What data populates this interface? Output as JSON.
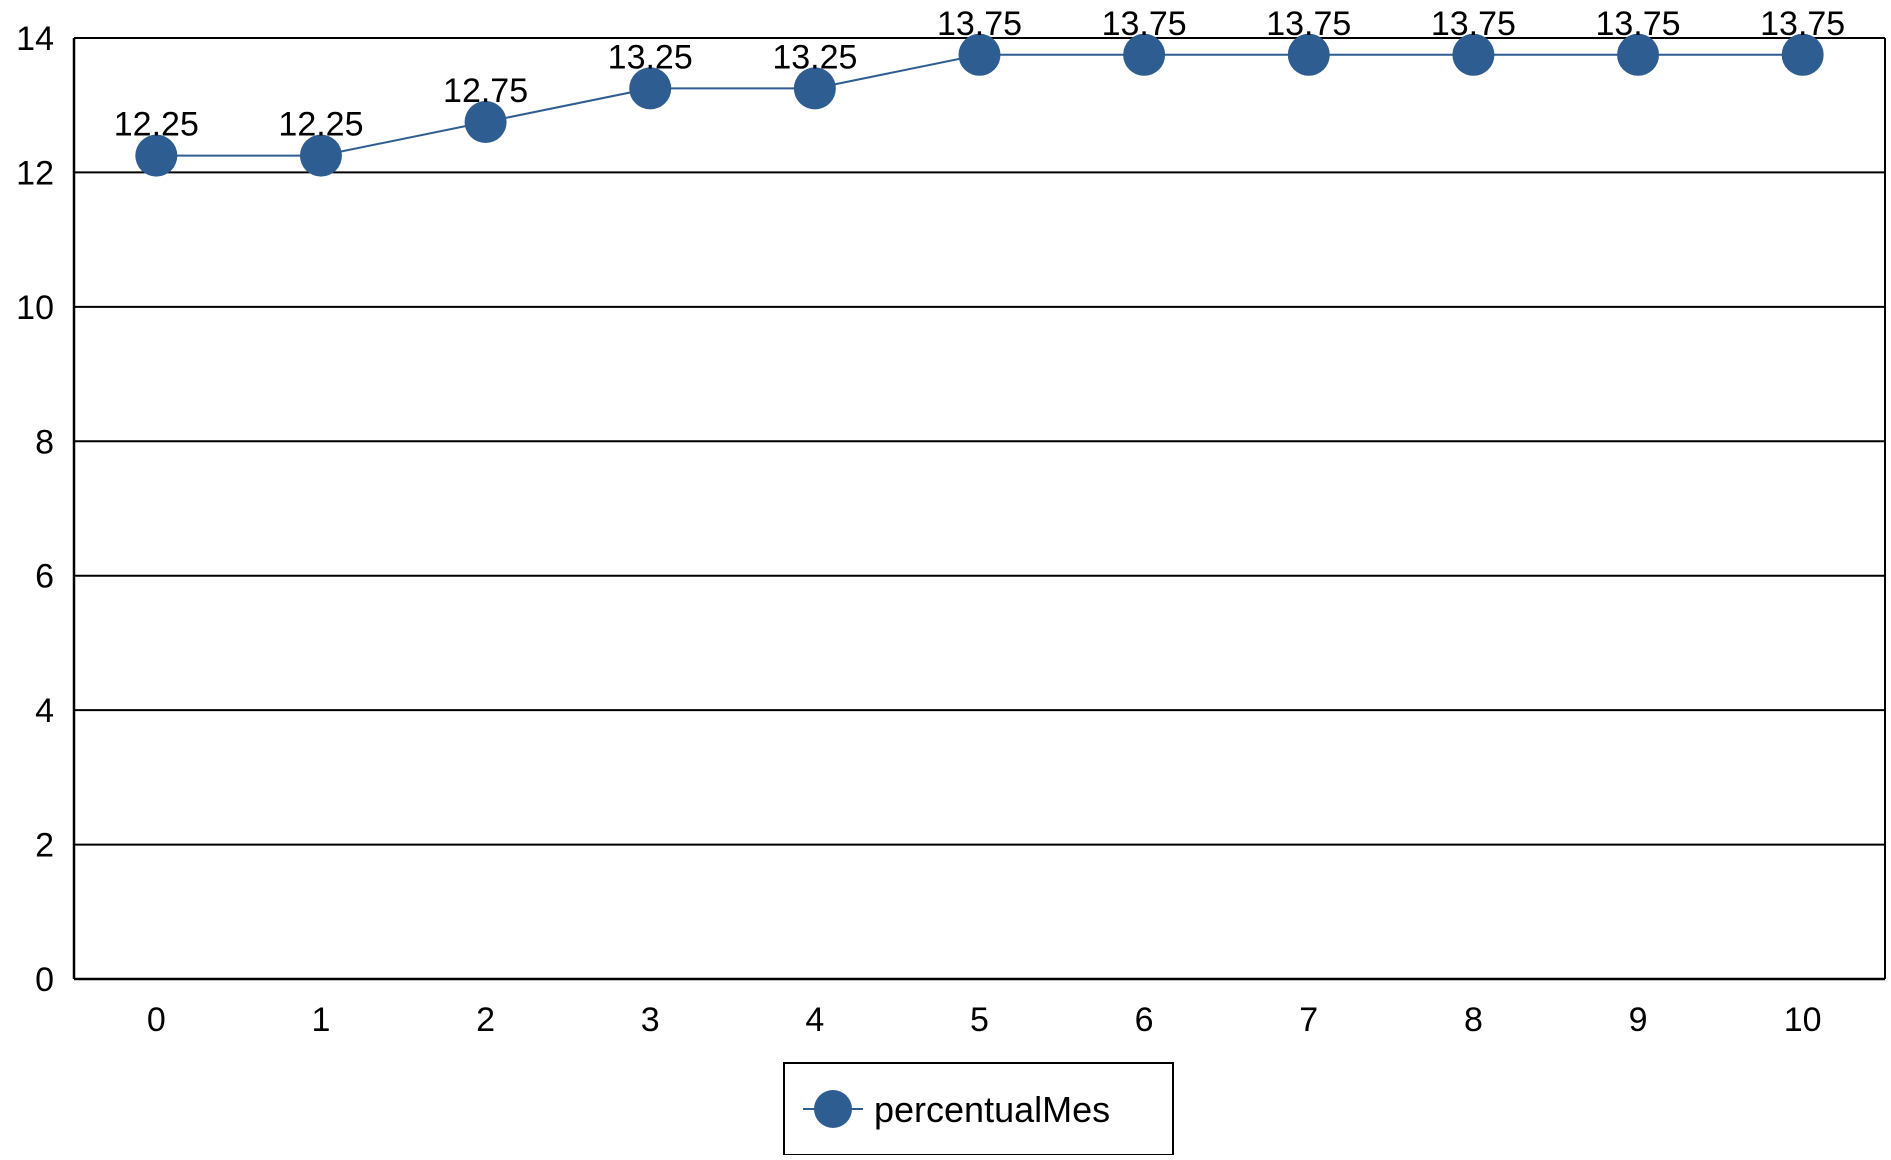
{
  "chart_data": {
    "type": "line",
    "x": [
      0,
      1,
      2,
      3,
      4,
      5,
      6,
      7,
      8,
      9,
      10
    ],
    "x_tick_labels": [
      "0",
      "1",
      "2",
      "3",
      "4",
      "5",
      "6",
      "7",
      "8",
      "9",
      "10"
    ],
    "series": [
      {
        "name": "percentualMes",
        "values": [
          12.25,
          12.25,
          12.75,
          13.25,
          13.25,
          13.75,
          13.75,
          13.75,
          13.75,
          13.75,
          13.75
        ],
        "data_labels": [
          "12.25",
          "12.25",
          "12.75",
          "13.25",
          "13.25",
          "13.75",
          "13.75",
          "13.75",
          "13.75",
          "13.75",
          "13.75"
        ],
        "color": "#2e5d92"
      }
    ],
    "ylim": [
      0,
      14
    ],
    "xlim": [
      -0.5,
      10.5
    ],
    "y_ticks": [
      0,
      2,
      4,
      6,
      8,
      10,
      12,
      14
    ],
    "y_tick_labels": [
      "0",
      "2",
      "4",
      "6",
      "8",
      "10",
      "12",
      "14"
    ],
    "grid": true,
    "grid_axis": "y",
    "legend": {
      "placement": "bottom-center",
      "entries": [
        "percentualMes"
      ]
    },
    "title": "",
    "xlabel": "",
    "ylabel": ""
  }
}
